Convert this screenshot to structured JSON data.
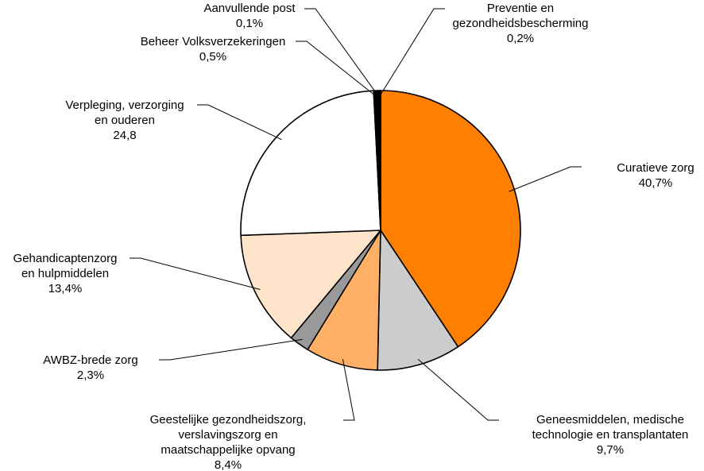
{
  "chart_data": {
    "type": "pie",
    "title": "",
    "legend": "none",
    "start": "12 o'clock",
    "direction": "clockwise",
    "slices": [
      {
        "label_lines": [
          "Curatieve zorg"
        ],
        "value_label": "40,7%",
        "value": 40.7,
        "color": "#ff7f00"
      },
      {
        "label_lines": [
          "Geneesmiddelen, medische",
          "technologie en transplantaten"
        ],
        "value_label": "9,7%",
        "value": 9.7,
        "color": "#cccccc"
      },
      {
        "label_lines": [
          "Geestelijke gezondheidszorg,",
          "verslavingszorg en",
          "maatschappelijke opvang"
        ],
        "value_label": "8,4%",
        "value": 8.4,
        "color": "#ffb066"
      },
      {
        "label_lines": [
          "AWBZ-brede zorg"
        ],
        "value_label": "2,3%",
        "value": 2.3,
        "color": "#999999"
      },
      {
        "label_lines": [
          "Gehandicaptenzorg",
          "en hulpmiddelen"
        ],
        "value_label": "13,4%",
        "value": 13.4,
        "color": "#ffe4cc"
      },
      {
        "label_lines": [
          "Verpleging, verzorging",
          "en ouderen"
        ],
        "value_label": "24,8",
        "value": 24.8,
        "color": "#ffffff"
      },
      {
        "label_lines": [
          "Beheer Volksverzekeringen"
        ],
        "value_label": "0,5%",
        "value": 0.5,
        "color": "#000000"
      },
      {
        "label_lines": [
          "Aanvullende post"
        ],
        "value_label": "0,1%",
        "value": 0.1,
        "color": "#000000"
      },
      {
        "label_lines": [
          "Preventie en",
          "gezondheidsbescherming"
        ],
        "value_label": "0,2%",
        "value": 0.2,
        "color": "#000000"
      }
    ]
  }
}
